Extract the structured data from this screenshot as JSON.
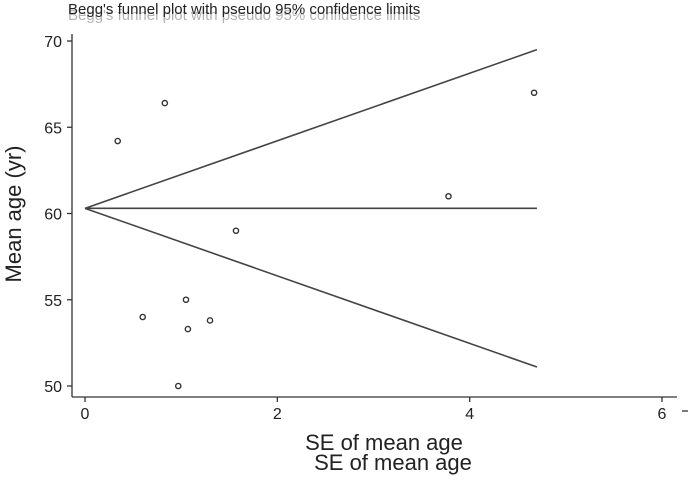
{
  "chart_data": {
    "type": "scatter",
    "title": "Begg's funnel plot with pseudo 95% confidence limits",
    "xlabel": "SE of mean age",
    "ylabel": "Mean age (yr)",
    "xlim": [
      0,
      6
    ],
    "ylim": [
      50,
      70
    ],
    "x_ticks": [
      "0",
      "2",
      "4",
      "6"
    ],
    "y_ticks": [
      "50",
      "55",
      "60",
      "65",
      "70"
    ],
    "grid": false,
    "points": [
      {
        "x": 0.34,
        "y": 64.2
      },
      {
        "x": 0.83,
        "y": 66.4
      },
      {
        "x": 0.6,
        "y": 54.0
      },
      {
        "x": 0.97,
        "y": 50.0
      },
      {
        "x": 1.05,
        "y": 55.0
      },
      {
        "x": 1.07,
        "y": 53.3
      },
      {
        "x": 1.3,
        "y": 53.8
      },
      {
        "x": 1.57,
        "y": 59.0
      },
      {
        "x": 3.78,
        "y": 61.0
      },
      {
        "x": 4.67,
        "y": 67.0
      }
    ],
    "pooled_line": {
      "x": [
        0,
        4.7
      ],
      "y": [
        60.3,
        60.3
      ]
    },
    "upper_limit": {
      "x": [
        0,
        4.7
      ],
      "y": [
        60.3,
        69.5
      ]
    },
    "lower_limit": {
      "x": [
        0,
        4.7
      ],
      "y": [
        60.3,
        51.1
      ]
    }
  }
}
